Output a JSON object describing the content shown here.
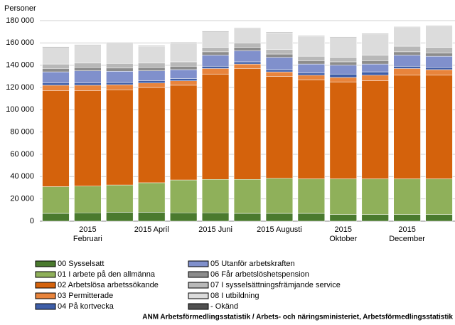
{
  "chart_data": {
    "type": "stacked_bar",
    "y_label": "Personer",
    "categories": [
      null,
      "2015\nFebruari",
      null,
      "2015 April",
      null,
      "2015 Juni",
      null,
      "2015 Augusti",
      null,
      "2015\nOktober",
      null,
      "2015\nDecember",
      null
    ],
    "ylim": [
      0,
      180000
    ],
    "yticks": [
      {
        "value": 0,
        "label": "0"
      },
      {
        "value": 20000,
        "label": "20 000"
      },
      {
        "value": 40000,
        "label": "40 000"
      },
      {
        "value": 60000,
        "label": "60 000"
      },
      {
        "value": 80000,
        "label": "80 000"
      },
      {
        "value": 100000,
        "label": "100 000"
      },
      {
        "value": 120000,
        "label": "120 000"
      },
      {
        "value": 140000,
        "label": "140 000"
      },
      {
        "value": 160000,
        "label": "160 000"
      },
      {
        "value": 180000,
        "label": "180 000"
      }
    ],
    "grid": true,
    "series": [
      {
        "name": "00 Sysselsatt",
        "color": "#4a7a2e",
        "values": [
          7000,
          7500,
          8000,
          8000,
          7500,
          7500,
          7000,
          7000,
          7000,
          6000,
          6000,
          6000,
          6000
        ]
      },
      {
        "name": "01 I arbete på den allmänna",
        "color": "#8fb05a",
        "values": [
          24000,
          24000,
          24500,
          26500,
          29500,
          30000,
          30500,
          31500,
          31000,
          32000,
          32000,
          32000,
          32000
        ]
      },
      {
        "name": "02 Arbetslösa arbetssökande",
        "color": "#d4620c",
        "values": [
          86000,
          85500,
          85500,
          85500,
          85000,
          94500,
          99500,
          91500,
          89000,
          87000,
          88000,
          93000,
          93000
        ]
      },
      {
        "name": "03 Permitterade",
        "color": "#e8843c",
        "values": [
          5000,
          5000,
          4500,
          4000,
          4000,
          5000,
          4000,
          4000,
          4000,
          4000,
          5000,
          6000,
          5000
        ]
      },
      {
        "name": "04 På kortvecka",
        "color": "#3e5ea8",
        "values": [
          2000,
          2000,
          2000,
          2000,
          2000,
          2000,
          2000,
          2000,
          2000,
          3000,
          3000,
          2000,
          2000
        ]
      },
      {
        "name": "05 Utanför arbetskraften",
        "color": "#8090cc",
        "values": [
          10000,
          11000,
          10000,
          9000,
          8000,
          10000,
          10000,
          11000,
          8000,
          8000,
          7000,
          10000,
          10000
        ]
      },
      {
        "name": "06 Får arbetslöshetspension",
        "color": "#8c8c8c",
        "values": [
          3000,
          3000,
          3000,
          3000,
          3000,
          3000,
          3000,
          3000,
          3000,
          3000,
          3000,
          3000,
          3000
        ]
      },
      {
        "name": "07 I sysselsättningsfrämjande service",
        "color": "#b8b8b8",
        "values": [
          4000,
          4000,
          4000,
          4000,
          4000,
          4000,
          4000,
          4000,
          4000,
          4000,
          5000,
          5000,
          5000
        ]
      },
      {
        "name": "08 I utbildning",
        "color": "#dcdcdc",
        "values": [
          15000,
          16000,
          18000,
          15000,
          17000,
          14000,
          13000,
          15000,
          18000,
          18000,
          19000,
          17000,
          19000
        ]
      },
      {
        "name": "- Okänd",
        "color": "#505050",
        "values": [
          500,
          500,
          500,
          500,
          500,
          500,
          500,
          500,
          500,
          500,
          500,
          500,
          500
        ]
      }
    ],
    "source": "ANM Arbetsförmedlingsstatistik / Arbets- och näringsministeriet, Arbetsförmedlingsstatistik"
  }
}
